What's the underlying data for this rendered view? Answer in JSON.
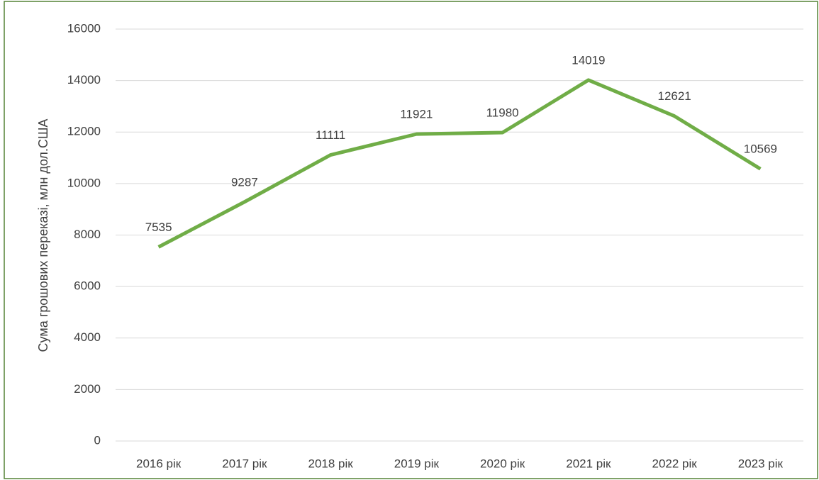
{
  "chart_data": {
    "type": "line",
    "y_label": "Сума грошових переказі, млн дол.США",
    "categories": [
      "2016 рік",
      "2017 рік",
      "2018 рік",
      "2019 рік",
      "2020 рік",
      "2021 рік",
      "2022 рік",
      "2023 рік"
    ],
    "series": [
      {
        "color": "#70ad47",
        "values": [
          7535,
          9287,
          11111,
          11921,
          11980,
          14019,
          12621,
          10569
        ]
      }
    ],
    "ylim": [
      0,
      16000
    ],
    "yticks": [
      0,
      2000,
      4000,
      6000,
      8000,
      10000,
      12000,
      14000,
      16000
    ],
    "grid": true
  }
}
